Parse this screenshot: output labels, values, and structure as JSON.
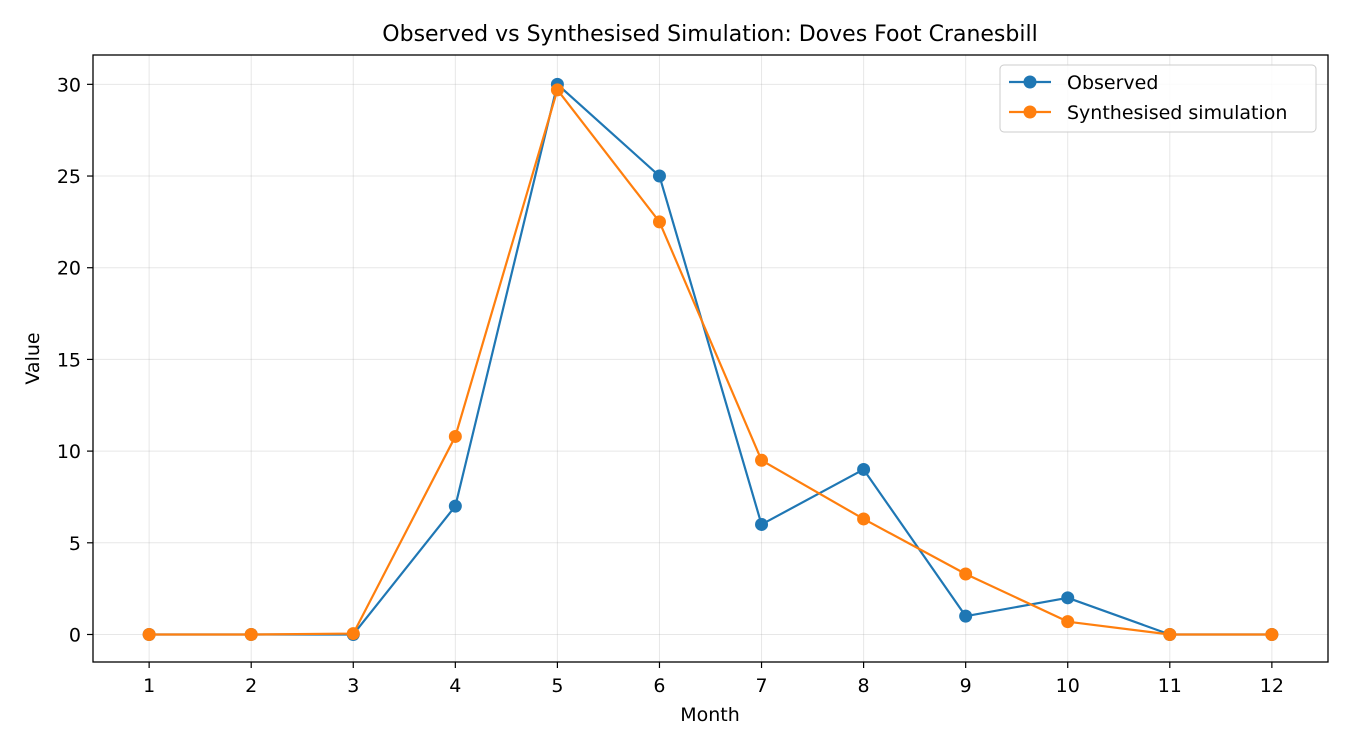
{
  "chart_data": {
    "type": "line",
    "title": "Observed vs Synthesised Simulation: Doves Foot Cranesbill",
    "xlabel": "Month",
    "ylabel": "Value",
    "x": [
      1,
      2,
      3,
      4,
      5,
      6,
      7,
      8,
      9,
      10,
      11,
      12
    ],
    "xticks": [
      "1",
      "2",
      "3",
      "4",
      "5",
      "6",
      "7",
      "8",
      "9",
      "10",
      "11",
      "12"
    ],
    "yticks": [
      "0",
      "5",
      "10",
      "15",
      "20",
      "25",
      "30"
    ],
    "xlim": [
      0.45,
      12.55
    ],
    "ylim": [
      -1.5,
      31.6
    ],
    "grid": true,
    "legend_position": "top-right",
    "series": [
      {
        "name": "Observed",
        "color": "#1f77b4",
        "values": [
          0,
          0,
          0,
          7,
          30,
          25,
          6,
          9,
          1,
          2,
          0,
          0
        ]
      },
      {
        "name": "Synthesised simulation",
        "color": "#ff7f0e",
        "values": [
          0,
          0,
          0.05,
          10.8,
          29.7,
          22.5,
          9.5,
          6.3,
          3.3,
          0.7,
          0,
          0
        ]
      }
    ]
  }
}
